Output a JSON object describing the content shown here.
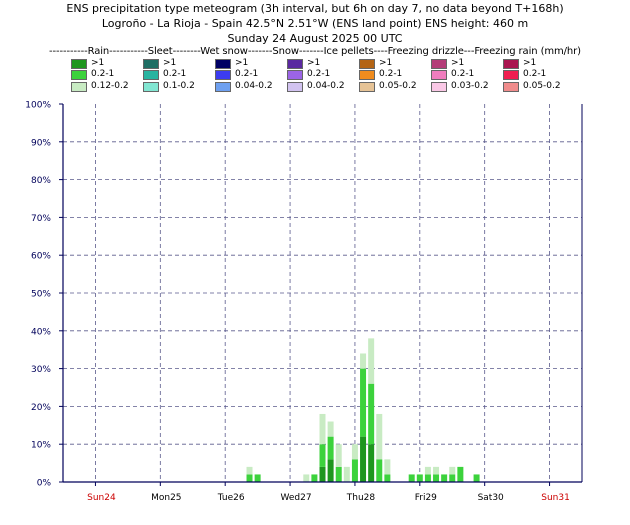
{
  "header": {
    "line1": "ENS precipitation type meteogram (3h interval, but 6h on day 7, no data beyond T+168h)",
    "line2": "Logroño - La Rioja - Spain 42.5°N 2.51°W (ENS land point) ENS height: 460 m",
    "line3": "Sunday 24 August 2025 00 UTC"
  },
  "legend": {
    "header": "-----------Rain-----------Sleet--------Wet snow-------Snow-------Ice pellets----Freezing drizzle---Freezing rain (mm/hr)",
    "columns": [
      {
        "type": "Rain",
        "entries": [
          {
            "label": ">1",
            "color": "#1e961e"
          },
          {
            "label": "0.2-1",
            "color": "#3cd23c"
          },
          {
            "label": "0.12-0.2",
            "color": "#c8ebc3"
          }
        ]
      },
      {
        "type": "Sleet",
        "entries": [
          {
            "label": ">1",
            "color": "#1e6e64"
          },
          {
            "label": "0.2-1",
            "color": "#28b4a0"
          },
          {
            "label": "0.1-0.2",
            "color": "#82e6d2"
          }
        ]
      },
      {
        "type": "Wet snow",
        "entries": [
          {
            "label": ">1",
            "color": "#000064"
          },
          {
            "label": "0.2-1",
            "color": "#3c3cf0"
          },
          {
            "label": "0.04-0.2",
            "color": "#6ea0f0"
          }
        ]
      },
      {
        "type": "Snow",
        "entries": [
          {
            "label": ">1",
            "color": "#5a28a0"
          },
          {
            "label": "0.2-1",
            "color": "#9b64e6"
          },
          {
            "label": "0.04-0.2",
            "color": "#d2c3f0"
          }
        ]
      },
      {
        "type": "Ice pellets",
        "entries": [
          {
            "label": ">1",
            "color": "#b46414"
          },
          {
            "label": "0.2-1",
            "color": "#f08c1e"
          },
          {
            "label": "0.05-0.2",
            "color": "#e6c396"
          }
        ]
      },
      {
        "type": "Freezing drizzle",
        "entries": [
          {
            "label": ">1",
            "color": "#b43c78"
          },
          {
            "label": "0.2-1",
            "color": "#f07dbe"
          },
          {
            "label": "0.03-0.2",
            "color": "#fac8e6"
          }
        ]
      },
      {
        "type": "Freezing rain",
        "entries": [
          {
            "label": ">1",
            "color": "#aa1450"
          },
          {
            "label": "0.2-1",
            "color": "#f01e50"
          },
          {
            "label": "0.05-0.2",
            "color": "#f08c8c"
          }
        ]
      }
    ]
  },
  "chart_data": {
    "type": "bar",
    "stacked": true,
    "ylabel": "",
    "ylim": [
      0,
      100
    ],
    "yticks": [
      "0%",
      "10%",
      "20%",
      "30%",
      "40%",
      "50%",
      "60%",
      "70%",
      "80%",
      "90%",
      "100%"
    ],
    "xlim_hours": [
      -12,
      180
    ],
    "day_ticks": [
      {
        "label": "Sun24",
        "hour": 0,
        "color": "#cc0000"
      },
      {
        "label": "Mon25",
        "hour": 24,
        "color": "#000000"
      },
      {
        "label": "Tue26",
        "hour": 48,
        "color": "#000000"
      },
      {
        "label": "Wed27",
        "hour": 72,
        "color": "#000000"
      },
      {
        "label": "Thu28",
        "hour": 96,
        "color": "#000000"
      },
      {
        "label": "Fri29",
        "hour": 120,
        "color": "#000000"
      },
      {
        "label": "Sat30",
        "hour": 144,
        "color": "#000000"
      },
      {
        "label": "Sun31",
        "hour": 168,
        "color": "#cc0000"
      }
    ],
    "grid": true,
    "series_colors": {
      "heavy": "#1e961e",
      "moderate": "#3cd23c",
      "light": "#c8ebc3"
    },
    "bars": [
      {
        "hour": 57,
        "heavy": 0,
        "moderate": 2,
        "light": 2
      },
      {
        "hour": 60,
        "heavy": 0,
        "moderate": 2,
        "light": 0
      },
      {
        "hour": 78,
        "heavy": 0,
        "moderate": 0,
        "light": 2
      },
      {
        "hour": 81,
        "heavy": 0,
        "moderate": 2,
        "light": 0
      },
      {
        "hour": 84,
        "heavy": 4,
        "moderate": 6,
        "light": 8
      },
      {
        "hour": 87,
        "heavy": 6,
        "moderate": 6,
        "light": 4
      },
      {
        "hour": 90,
        "heavy": 0,
        "moderate": 4,
        "light": 6
      },
      {
        "hour": 93,
        "heavy": 0,
        "moderate": 0,
        "light": 4
      },
      {
        "hour": 96,
        "heavy": 0,
        "moderate": 6,
        "light": 4
      },
      {
        "hour": 99,
        "heavy": 12,
        "moderate": 18,
        "light": 4
      },
      {
        "hour": 102,
        "heavy": 10,
        "moderate": 16,
        "light": 12
      },
      {
        "hour": 105,
        "heavy": 0,
        "moderate": 6,
        "light": 12
      },
      {
        "hour": 108,
        "heavy": 0,
        "moderate": 2,
        "light": 4
      },
      {
        "hour": 117,
        "heavy": 0,
        "moderate": 2,
        "light": 0
      },
      {
        "hour": 120,
        "heavy": 0,
        "moderate": 2,
        "light": 0
      },
      {
        "hour": 123,
        "heavy": 0,
        "moderate": 2,
        "light": 2
      },
      {
        "hour": 126,
        "heavy": 0,
        "moderate": 2,
        "light": 2
      },
      {
        "hour": 129,
        "heavy": 0,
        "moderate": 2,
        "light": 0
      },
      {
        "hour": 132,
        "heavy": 0,
        "moderate": 2,
        "light": 2
      },
      {
        "hour": 135,
        "heavy": 0,
        "moderate": 4,
        "light": 0
      },
      {
        "hour": 141,
        "heavy": 0,
        "moderate": 2,
        "light": 0
      }
    ]
  }
}
